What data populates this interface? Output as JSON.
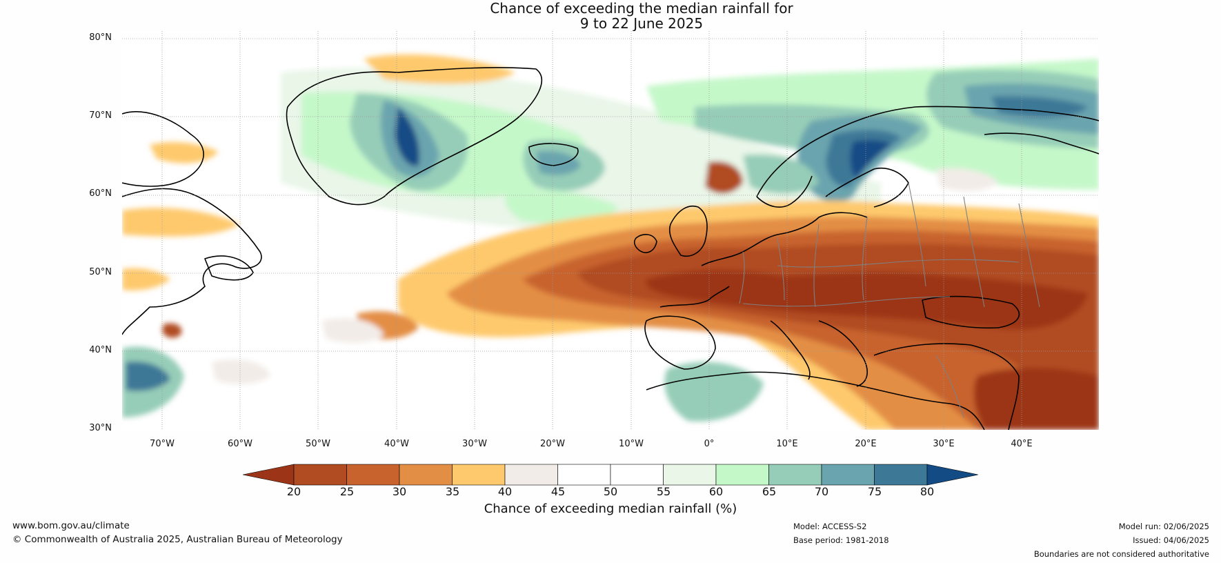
{
  "title": {
    "line1": "Chance of exceeding the median rainfall for",
    "line2": "9 to 22 June 2025"
  },
  "map": {
    "extent": {
      "lon_min": -75,
      "lon_max": 50,
      "lat_min": 30,
      "lat_max": 81
    },
    "lat_labels": [
      "80°N",
      "70°N",
      "60°N",
      "50°N",
      "40°N",
      "30°N"
    ],
    "lon_labels": [
      "70°W",
      "60°W",
      "50°W",
      "40°W",
      "30°W",
      "20°W",
      "10°W",
      "0°",
      "10°E",
      "20°E",
      "30°E",
      "40°E"
    ],
    "gridlines": true,
    "ocean_color": "#ffffff",
    "coastline_color": "#000000",
    "border_color": "#808080"
  },
  "colorbar": {
    "ticks": [
      "20",
      "25",
      "30",
      "35",
      "40",
      "45",
      "50",
      "55",
      "60",
      "65",
      "70",
      "75",
      "80"
    ],
    "colors": [
      "#9c3518",
      "#b04b22",
      "#c8632d",
      "#e38e45",
      "#fec96d",
      "#f2ece8",
      "#ffffff",
      "#ffffff",
      "#e9f6e8",
      "#c5f8c9",
      "#96cdb8",
      "#6aa4ae",
      "#3e7897",
      "#134c85"
    ],
    "label": "Chance of exceeding median rainfall (%)"
  },
  "footer": {
    "website": "www.bom.gov.au/climate",
    "copyright": "© Commonwealth of Australia 2025, Australian Bureau of Meteorology",
    "model": "Model: ACCESS-S2",
    "base_period": "Base period: 1981-2018",
    "model_run": "Model run: 02/06/2025",
    "issued": "Issued: 04/06/2025",
    "disclaimer": "Boundaries are not considered authoritative"
  }
}
